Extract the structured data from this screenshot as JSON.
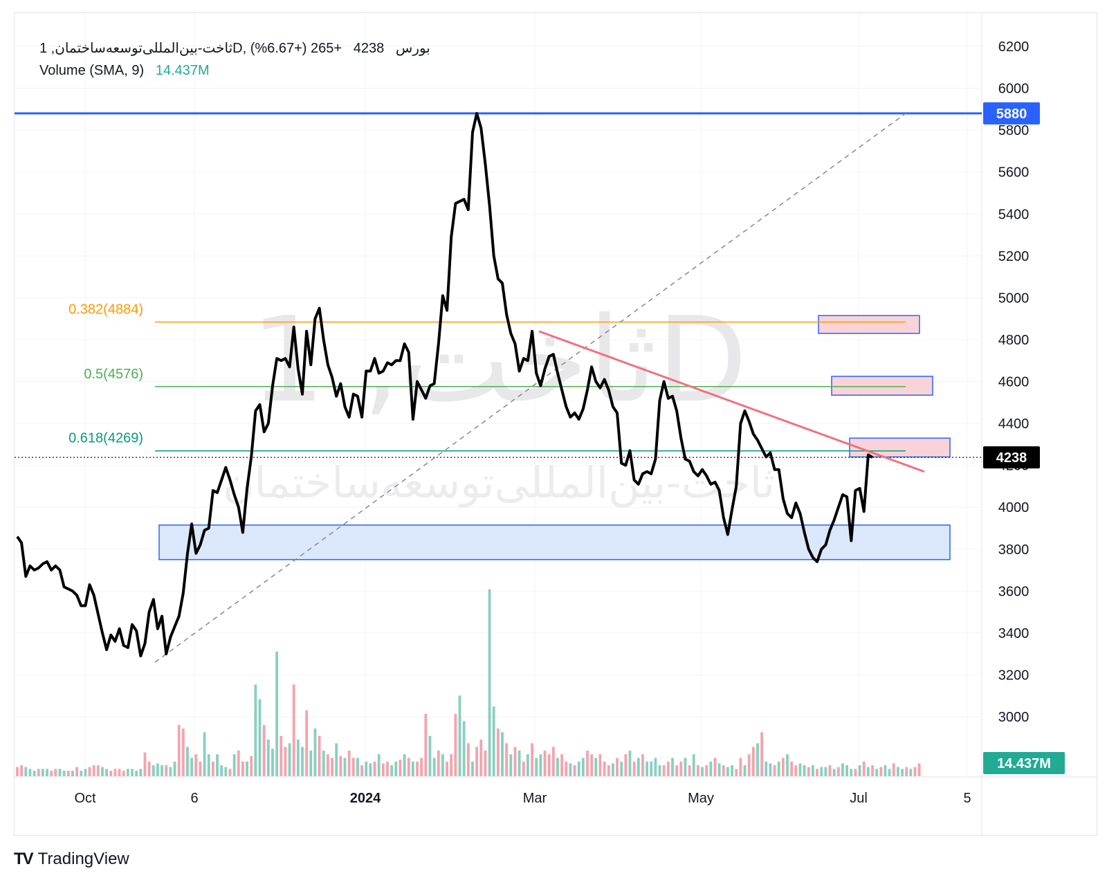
{
  "legend": {
    "symbol_text": "ثاخت-بین‌المللی‌توسعه‌ساختمان, 1D, بورس",
    "last_price": "4238",
    "change": "+265 (+6.67%)",
    "volume_label": "Volume (SMA, 9)",
    "volume_value": "14.437M"
  },
  "watermark": {
    "ticker": "ثاخت, 1D",
    "name": "ثاخت-بین‌المللی‌توسعه‌ساختمان"
  },
  "brand": {
    "name": "TradingView",
    "logo_text": "TV"
  },
  "colors": {
    "price_line": "#000000",
    "blue_level": "#2962ff",
    "fib_0382": "#ff9800",
    "fib_05": "#4caf50",
    "fib_0618": "#089981",
    "trendline": "#f06f7f",
    "zone_blue_fill": "#dbe8fb",
    "zone_red_fill": "#f8d4d8",
    "volume_up": "#89cfc0",
    "volume_down": "#f4a3ac",
    "volume_badge": "#22ab94",
    "last_price_badge": "#000000"
  },
  "chart_data": {
    "type": "line",
    "x_ticks": [
      "Oct",
      "6",
      "2024",
      "Mar",
      "May",
      "Jul",
      "5"
    ],
    "y_ticks": [
      3000,
      3200,
      3400,
      3600,
      3800,
      4000,
      4200,
      4400,
      4600,
      4800,
      5000,
      5200,
      5400,
      5600,
      5800,
      6000,
      6200
    ],
    "ylim": [
      2900,
      6300
    ],
    "series": [
      {
        "values": [
          3860,
          3830,
          3670,
          3720,
          3700,
          3710,
          3730,
          3740,
          3700,
          3720,
          3700,
          3620,
          3610,
          3600,
          3580,
          3530,
          3530,
          3630,
          3580,
          3490,
          3400,
          3320,
          3390,
          3360,
          3420,
          3340,
          3330,
          3440,
          3410,
          3290,
          3350,
          3500,
          3560,
          3420,
          3480,
          3300,
          3380,
          3430,
          3480,
          3590,
          3780,
          3920,
          3780,
          3820,
          3890,
          3900,
          4080,
          4070,
          4130,
          4190,
          4130,
          4060,
          4000,
          3880,
          4090,
          4240,
          4460,
          4490,
          4360,
          4400,
          4580,
          4710,
          4700,
          4710,
          4670,
          4860,
          4660,
          4540,
          4840,
          4680,
          4900,
          4950,
          4800,
          4680,
          4620,
          4530,
          4590,
          4480,
          4430,
          4540,
          4530,
          4430,
          4650,
          4650,
          4710,
          4640,
          4650,
          4690,
          4680,
          4700,
          4700,
          4780,
          4740,
          4420,
          4600,
          4560,
          4520,
          4580,
          4590,
          4780,
          5010,
          4940,
          5290,
          5450,
          5460,
          5470,
          5420,
          5790,
          5880,
          5810,
          5640,
          5440,
          5200,
          5090,
          5070,
          4920,
          4830,
          4780,
          4650,
          4710,
          4700,
          4840,
          4640,
          4580,
          4660,
          4720,
          4730,
          4640,
          4560,
          4480,
          4430,
          4450,
          4420,
          4470,
          4560,
          4670,
          4600,
          4570,
          4610,
          4560,
          4480,
          4450,
          4210,
          4200,
          4270,
          4130,
          4110,
          4160,
          4170,
          4160,
          4230,
          4510,
          4600,
          4520,
          4530,
          4460,
          4330,
          4230,
          4220,
          4170,
          4150,
          4180,
          4150,
          4110,
          4120,
          4080,
          3950,
          3870,
          3990,
          4100,
          4400,
          4460,
          4410,
          4350,
          4320,
          4280,
          4240,
          4260,
          4180,
          4180,
          4040,
          3970,
          3950,
          4020,
          3970,
          3880,
          3800,
          3760,
          3740,
          3800,
          3820,
          3890,
          3940,
          4000,
          4060,
          4050,
          3840,
          4080,
          4090,
          3980,
          4250,
          4238
        ],
        "volume_millions": [
          5,
          6,
          5,
          4,
          3,
          4,
          4,
          4,
          3,
          4,
          4,
          3,
          3,
          3,
          5,
          3,
          4,
          5,
          6,
          6,
          5,
          4,
          3,
          4,
          4,
          3,
          4,
          4,
          3,
          4,
          13,
          8,
          6,
          7,
          6,
          6,
          5,
          8,
          28,
          26,
          16,
          10,
          12,
          8,
          24,
          12,
          8,
          12,
          6,
          5,
          4,
          12,
          14,
          8,
          8,
          11,
          50,
          42,
          28,
          20,
          15,
          68,
          22,
          16,
          18,
          50,
          20,
          16,
          36,
          14,
          26,
          22,
          14,
          12,
          10,
          18,
          11,
          10,
          14,
          10,
          10,
          6,
          8,
          7,
          8,
          12,
          7,
          8,
          6,
          8,
          9,
          12,
          10,
          8,
          8,
          10,
          34,
          22,
          10,
          14,
          12,
          8,
          12,
          34,
          44,
          30,
          18,
          8,
          16,
          20,
          14,
          102,
          38,
          26,
          24,
          18,
          12,
          16,
          14,
          8,
          12,
          18,
          10,
          12,
          14,
          12,
          16,
          10,
          12,
          8,
          7,
          6,
          8,
          10,
          14,
          12,
          10,
          12,
          8,
          6,
          7,
          10,
          8,
          12,
          14,
          8,
          10,
          12,
          8,
          8,
          10,
          6,
          6,
          8,
          10,
          6,
          8,
          10,
          6,
          12,
          6,
          5,
          6,
          8,
          10,
          7,
          6,
          5,
          6,
          4,
          10,
          6,
          12,
          16,
          18,
          24,
          8,
          7,
          6,
          8,
          10,
          12,
          8,
          6,
          7,
          6,
          5,
          6,
          4,
          5,
          5,
          6,
          4,
          5,
          7,
          6,
          4,
          4,
          6,
          8,
          5,
          6,
          4,
          5,
          6,
          4,
          7,
          5,
          4,
          5,
          4,
          5,
          7
        ]
      }
    ],
    "horizontal_levels": [
      {
        "label": "",
        "value": 5880
      },
      {
        "label": "0.382(4884)",
        "value": 4884
      },
      {
        "label": "0.5(4576)",
        "value": 4576
      },
      {
        "label": "0.618(4269)",
        "value": 4269
      }
    ],
    "last_price_label": "4238",
    "level_badge": "5880",
    "volume_badge": "14.437M",
    "volume_up_flags": "0011101100110101100011000011110011101100110011011101001011011100101101101001010010110100110101000110100011010001101010101011000100101100100010101010111100100101010101011001001011010100110101101011101010101101101001010"
  }
}
